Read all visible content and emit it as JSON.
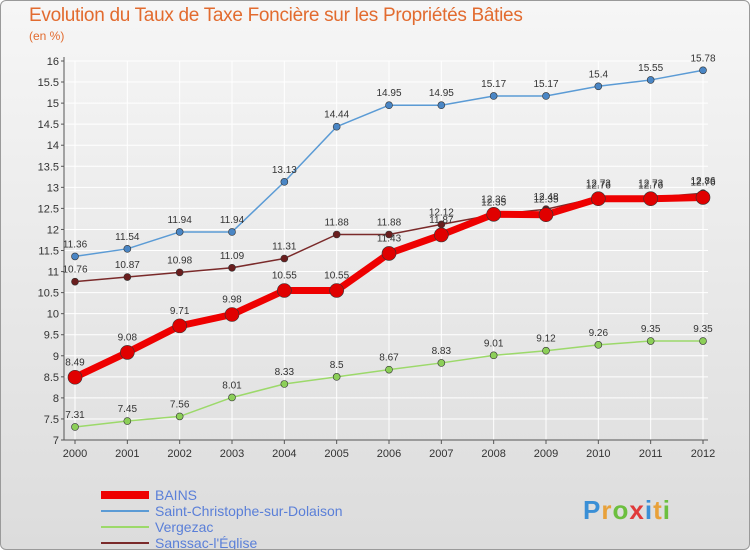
{
  "chart_data": {
    "type": "line",
    "title": "Evolution du Taux de Taxe Foncière sur les Propriétés Bâties",
    "unit_label": "(en %)",
    "categories": [
      "2000",
      "2001",
      "2002",
      "2003",
      "2004",
      "2005",
      "2006",
      "2007",
      "2008",
      "2009",
      "2010",
      "2011",
      "2012"
    ],
    "ylim": [
      7,
      16
    ],
    "yticks": [
      "7",
      "7.5",
      "8",
      "8.5",
      "9",
      "9.5",
      "10",
      "10.5",
      "11",
      "11.5",
      "12",
      "12.5",
      "13",
      "13.5",
      "14",
      "14.5",
      "15",
      "15.5",
      "16"
    ],
    "series": [
      {
        "name": "Saint-Christophe-sur-Dolaison",
        "color": "#5b9bd5",
        "dot": "#4a86c5",
        "width": 1.5,
        "r": 3.5,
        "values": [
          11.36,
          11.54,
          11.94,
          11.94,
          13.13,
          14.44,
          14.95,
          14.95,
          15.17,
          15.17,
          15.4,
          15.55,
          15.78
        ],
        "labels": [
          "11.36",
          "11.54",
          "11.94",
          "11.94",
          "13.13",
          "14.44",
          "14.95",
          "14.95",
          "15.17",
          "15.17",
          "15.4",
          "15.55",
          "15.78"
        ]
      },
      {
        "name": "Vergezac",
        "color": "#9cd96a",
        "dot": "#8ccf58",
        "width": 1.5,
        "r": 3.5,
        "values": [
          7.31,
          7.45,
          7.56,
          8.01,
          8.33,
          8.5,
          8.67,
          8.83,
          9.01,
          9.12,
          9.26,
          9.35,
          9.35
        ],
        "labels": [
          "7.31",
          "7.45",
          "7.56",
          "8.01",
          "8.33",
          "8.5",
          "8.67",
          "8.83",
          "9.01",
          "9.12",
          "9.26",
          "9.35",
          "9.35"
        ]
      },
      {
        "name": "Sanssac-l'Église",
        "color": "#7a2a2a",
        "dot": "#6a1e1e",
        "width": 1.5,
        "r": 3.5,
        "values": [
          10.76,
          10.87,
          10.98,
          11.09,
          11.31,
          11.88,
          11.88,
          12.12,
          12.35,
          12.48,
          12.76,
          12.76,
          12.86
        ],
        "labels": [
          "10.76",
          "10.87",
          "10.98",
          "11.09",
          "11.31",
          "11.88",
          "11.88",
          "12.12",
          "12.35",
          "12.48",
          "12.76",
          "12.76",
          "12.86"
        ]
      },
      {
        "name": "BAINS",
        "color": "#ee0000",
        "dot": "#e00000",
        "width": 7,
        "r": 7,
        "values": [
          8.49,
          9.08,
          9.71,
          9.98,
          10.55,
          10.55,
          11.43,
          11.87,
          12.36,
          12.35,
          12.73,
          12.73,
          12.76
        ],
        "labels": [
          "8.49",
          "9.08",
          "9.71",
          "9.98",
          "10.55",
          "10.55",
          "11.43",
          "11.87",
          "12.36",
          "12.35",
          "12.73",
          "12.73",
          "12.76"
        ]
      }
    ],
    "legend_order": [
      "BAINS",
      "Saint-Christophe-sur-Dolaison",
      "Vergezac",
      "Sanssac-l'Église"
    ]
  },
  "logo": {
    "letters": [
      {
        "t": "P",
        "c": "#3a8fd6"
      },
      {
        "t": "r",
        "c": "#e8a13a"
      },
      {
        "t": "o",
        "c": "#6cbf3f"
      },
      {
        "t": "x",
        "c": "#e03a3a"
      },
      {
        "t": "i",
        "c": "#3a8fd6"
      },
      {
        "t": "t",
        "c": "#e8a13a"
      },
      {
        "t": "i",
        "c": "#6cbf3f"
      }
    ]
  }
}
